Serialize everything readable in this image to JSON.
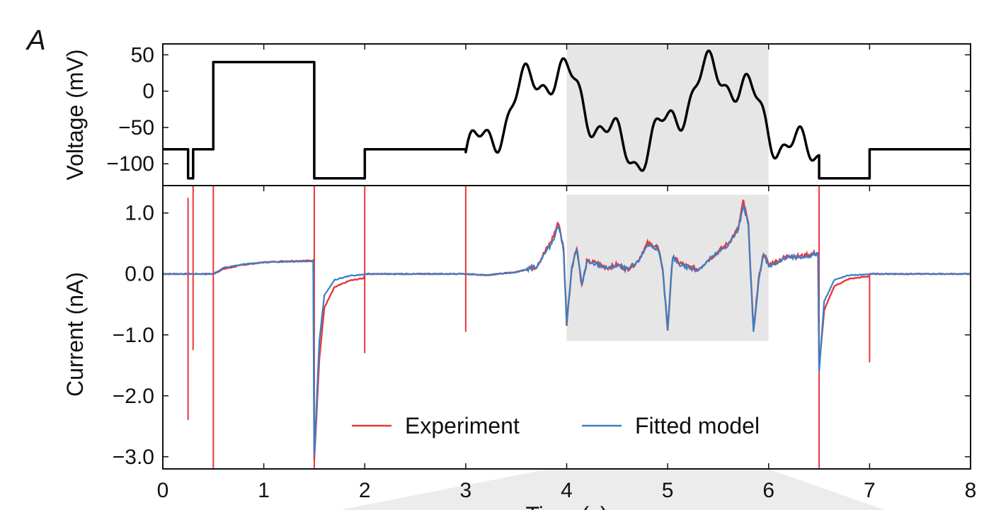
{
  "panel_label": "A",
  "colors": {
    "experiment": "#e8383b",
    "model": "#3a7fc4",
    "voltage": "#000000",
    "highlight": "#e6e6e6",
    "below_shadow": "#ececec"
  },
  "chart_data": [
    {
      "id": "voltage",
      "type": "line",
      "ylabel": "Voltage (mV)",
      "xlim": [
        0,
        8
      ],
      "ylim": [
        -130,
        65
      ],
      "yticks": [
        50,
        0,
        -50,
        -100
      ],
      "ytick_labels": [
        "50",
        "0",
        "−50",
        "−100"
      ],
      "highlight_region": {
        "x": [
          4,
          6
        ]
      },
      "protocol_steps": [
        {
          "t": 0.0,
          "v": -80
        },
        {
          "t": 0.25,
          "v": -120
        },
        {
          "t": 0.3,
          "v": -80
        },
        {
          "t": 0.5,
          "v": 40
        },
        {
          "t": 1.5,
          "v": -120
        },
        {
          "t": 2.0,
          "v": -80
        },
        {
          "t": 3.0,
          "v": -80
        },
        {
          "t": 6.5,
          "v": -120
        },
        {
          "t": 7.0,
          "v": -80
        },
        {
          "t": 8.0,
          "v": -80
        }
      ],
      "sine_segment": {
        "t_start": 3.0,
        "t_end": 6.5,
        "offset": -30,
        "components": [
          {
            "amplitude": 54,
            "frequency": 0.6
          },
          {
            "amplitude": 26,
            "frequency": 2.2
          },
          {
            "amplitude": 10,
            "frequency": 5.5
          }
        ]
      },
      "series": [
        {
          "values_ref": "protocol"
        }
      ]
    },
    {
      "id": "current",
      "type": "line",
      "xlabel": "Time (s)",
      "ylabel": "Current (nA)",
      "xlim": [
        0,
        8
      ],
      "ylim": [
        -3.2,
        1.45
      ],
      "xticks": [
        0,
        1,
        2,
        3,
        4,
        5,
        6,
        7,
        8
      ],
      "xtick_labels": [
        "0",
        "1",
        "2",
        "3",
        "4",
        "5",
        "6",
        "7",
        "8"
      ],
      "yticks": [
        1.0,
        0.0,
        -1.0,
        -2.0,
        -3.0
      ],
      "ytick_labels": [
        "1.0",
        "0.0",
        "−1.0",
        "−2.0",
        "−3.0"
      ],
      "highlight_region": {
        "x": [
          4,
          6
        ],
        "y": [
          -1.1,
          1.3
        ]
      },
      "legend": {
        "placement": "bottom-center"
      },
      "capacitive_spikes": [
        {
          "t": 0.25,
          "min": -2.4,
          "max": 1.25
        },
        {
          "t": 0.3,
          "min": -1.25,
          "max": 1.45
        },
        {
          "t": 0.5,
          "min": -3.2,
          "max": 1.45
        },
        {
          "t": 1.5,
          "min": -3.2,
          "max": 1.45
        },
        {
          "t": 2.0,
          "min": -1.3,
          "max": 1.45
        },
        {
          "t": 3.0,
          "min": -0.95,
          "max": 1.45
        },
        {
          "t": 6.5,
          "min": -3.2,
          "max": 1.45
        },
        {
          "t": 7.0,
          "min": -1.45,
          "max": 0.0
        }
      ],
      "series": [
        {
          "name": "Experiment",
          "color_key": "experiment",
          "points": [
            [
              0.0,
              0.0
            ],
            [
              0.5,
              0.0
            ],
            [
              0.6,
              0.08
            ],
            [
              0.8,
              0.15
            ],
            [
              1.0,
              0.19
            ],
            [
              1.2,
              0.21
            ],
            [
              1.49,
              0.22
            ],
            [
              1.5,
              -3.05
            ],
            [
              1.55,
              -1.4
            ],
            [
              1.6,
              -0.55
            ],
            [
              1.7,
              -0.22
            ],
            [
              1.85,
              -0.11
            ],
            [
              1.99,
              -0.07
            ],
            [
              2.0,
              0.0
            ],
            [
              3.0,
              0.0
            ],
            [
              3.2,
              -0.02
            ],
            [
              3.5,
              0.03
            ],
            [
              3.7,
              0.12
            ],
            [
              3.85,
              0.55
            ],
            [
              3.92,
              0.85
            ],
            [
              3.97,
              0.4
            ],
            [
              4.0,
              -0.82
            ],
            [
              4.05,
              0.1
            ],
            [
              4.1,
              0.45
            ],
            [
              4.15,
              -0.2
            ],
            [
              4.2,
              0.2
            ],
            [
              4.3,
              0.18
            ],
            [
              4.4,
              0.1
            ],
            [
              4.5,
              0.15
            ],
            [
              4.6,
              0.08
            ],
            [
              4.7,
              0.2
            ],
            [
              4.8,
              0.5
            ],
            [
              4.9,
              0.45
            ],
            [
              4.95,
              0.1
            ],
            [
              5.0,
              -0.92
            ],
            [
              5.05,
              0.3
            ],
            [
              5.1,
              0.2
            ],
            [
              5.2,
              0.12
            ],
            [
              5.3,
              0.08
            ],
            [
              5.45,
              0.3
            ],
            [
              5.6,
              0.5
            ],
            [
              5.7,
              0.75
            ],
            [
              5.75,
              1.2
            ],
            [
              5.8,
              0.8
            ],
            [
              5.85,
              -0.95
            ],
            [
              5.9,
              -0.1
            ],
            [
              5.95,
              0.35
            ],
            [
              6.0,
              0.15
            ],
            [
              6.1,
              0.22
            ],
            [
              6.2,
              0.3
            ],
            [
              6.3,
              0.28
            ],
            [
              6.49,
              0.35
            ],
            [
              6.5,
              -1.55
            ],
            [
              6.55,
              -0.6
            ],
            [
              6.65,
              -0.2
            ],
            [
              6.8,
              -0.08
            ],
            [
              6.99,
              -0.04
            ],
            [
              7.0,
              0.0
            ],
            [
              8.0,
              0.0
            ]
          ]
        },
        {
          "name": "Fitted model",
          "color_key": "model",
          "points": [
            [
              0.0,
              0.0
            ],
            [
              0.5,
              0.0
            ],
            [
              0.6,
              0.1
            ],
            [
              0.8,
              0.16
            ],
            [
              1.0,
              0.19
            ],
            [
              1.2,
              0.2
            ],
            [
              1.49,
              0.21
            ],
            [
              1.5,
              -3.0
            ],
            [
              1.55,
              -1.1
            ],
            [
              1.6,
              -0.35
            ],
            [
              1.7,
              -0.1
            ],
            [
              1.85,
              -0.03
            ],
            [
              1.99,
              -0.01
            ],
            [
              2.0,
              0.0
            ],
            [
              3.0,
              0.0
            ],
            [
              3.2,
              -0.02
            ],
            [
              3.5,
              0.03
            ],
            [
              3.7,
              0.12
            ],
            [
              3.85,
              0.5
            ],
            [
              3.92,
              0.8
            ],
            [
              3.97,
              0.38
            ],
            [
              4.0,
              -0.8
            ],
            [
              4.05,
              0.08
            ],
            [
              4.1,
              0.42
            ],
            [
              4.15,
              -0.18
            ],
            [
              4.2,
              0.18
            ],
            [
              4.3,
              0.16
            ],
            [
              4.4,
              0.09
            ],
            [
              4.5,
              0.14
            ],
            [
              4.6,
              0.07
            ],
            [
              4.7,
              0.18
            ],
            [
              4.8,
              0.48
            ],
            [
              4.9,
              0.42
            ],
            [
              4.95,
              0.08
            ],
            [
              5.0,
              -0.9
            ],
            [
              5.05,
              0.28
            ],
            [
              5.1,
              0.18
            ],
            [
              5.2,
              0.1
            ],
            [
              5.3,
              0.07
            ],
            [
              5.45,
              0.28
            ],
            [
              5.6,
              0.48
            ],
            [
              5.7,
              0.72
            ],
            [
              5.75,
              1.15
            ],
            [
              5.8,
              0.78
            ],
            [
              5.85,
              -0.96
            ],
            [
              5.9,
              -0.12
            ],
            [
              5.95,
              0.32
            ],
            [
              6.0,
              0.14
            ],
            [
              6.1,
              0.2
            ],
            [
              6.2,
              0.28
            ],
            [
              6.3,
              0.26
            ],
            [
              6.49,
              0.33
            ],
            [
              6.5,
              -1.6
            ],
            [
              6.55,
              -0.45
            ],
            [
              6.65,
              -0.1
            ],
            [
              6.8,
              -0.02
            ],
            [
              6.99,
              -0.01
            ],
            [
              7.0,
              0.0
            ],
            [
              8.0,
              0.0
            ]
          ]
        }
      ]
    }
  ]
}
